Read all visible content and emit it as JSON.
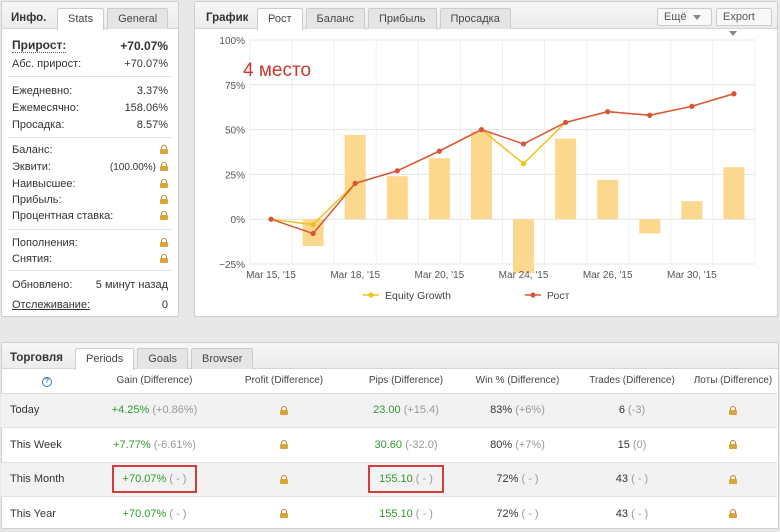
{
  "info": {
    "title": "Инфо.",
    "tabs": [
      "Stats",
      "General"
    ],
    "gain_label": "Прирост:",
    "gain_value": "+70.07%",
    "abs_gain_label": "Абс. прирост:",
    "abs_gain_value": "+70.07%",
    "daily_label": "Ежедневно:",
    "daily_value": "3.37%",
    "monthly_label": "Ежемесячно:",
    "monthly_value": "158.06%",
    "drawdown_label": "Просадка:",
    "drawdown_value": "8.57%",
    "balance_label": "Баланс:",
    "equity_label": "Эквити:",
    "equity_value": "(100.00%)",
    "highest_label": "Наивысшее:",
    "profit_label": "Прибыль:",
    "interest_label": "Процентная ставка:",
    "deposits_label": "Пополнения:",
    "withdrawals_label": "Снятия:",
    "updated_label": "Обновлено:",
    "updated_value": "5 минут назад",
    "tracking_label": "Отслеживание:",
    "tracking_value": "0"
  },
  "graph": {
    "title": "График",
    "tabs": [
      "Рост",
      "Баланс",
      "Прибыль",
      "Просадка"
    ],
    "more_label": "Ещё",
    "export_label": "Export",
    "annotation": "4 место"
  },
  "chart_data": {
    "type": "bar+line",
    "ylim": [
      -25,
      100
    ],
    "yticks": [
      "100%",
      "75%",
      "50%",
      "25%",
      "0%",
      "−25%"
    ],
    "ytick_values": [
      100,
      75,
      50,
      25,
      0,
      -25
    ],
    "xticks": [
      "Mar 15, '15",
      "Mar 18, '15",
      "Mar 20, '15",
      "Mar 24, '15",
      "Mar 26, '15",
      "Mar 30, '15"
    ],
    "xtick_index": [
      0,
      2,
      4,
      6,
      8,
      10
    ],
    "grid": true,
    "legend_position": "bottom",
    "bars": [
      0,
      -15,
      47,
      24,
      34,
      49,
      -30,
      45,
      22,
      -8,
      10,
      29
    ],
    "bar_color": "#fbd88e",
    "series": [
      {
        "name": "Equity Growth",
        "color": "#f2c21a",
        "values": [
          0,
          -3,
          20,
          27,
          38,
          50,
          31,
          54,
          60,
          58,
          63,
          70
        ]
      },
      {
        "name": "Рост",
        "color": "#d9553a",
        "values": [
          0,
          -8,
          20,
          27,
          38,
          50,
          42,
          54,
          60,
          58,
          63,
          70
        ]
      }
    ]
  },
  "trading": {
    "title": "Торговля",
    "tabs": [
      "Periods",
      "Goals",
      "Browser"
    ],
    "help": "?",
    "headers": [
      "Gain (Difference)",
      "Profit (Difference)",
      "Pips (Difference)",
      "Win % (Difference)",
      "Trades (Difference)",
      "Лоты (Difference)"
    ],
    "rows": [
      {
        "period": "Today",
        "gain": "+4.25%",
        "gain_diff": "(+0.86%)",
        "pips": "23.00",
        "pips_diff": "(+15.4)",
        "win": "83%",
        "win_diff": "(+6%)",
        "trades": "6",
        "trades_diff": "(-3)"
      },
      {
        "period": "This Week",
        "gain": "+7.77%",
        "gain_diff": "(-6.61%)",
        "pips": "30.60",
        "pips_diff": "(-32.0)",
        "win": "80%",
        "win_diff": "(+7%)",
        "trades": "15",
        "trades_diff": "(0)"
      },
      {
        "period": "This Month",
        "gain": "+70.07%",
        "gain_diff": "( - )",
        "pips": "155.10",
        "pips_diff": "( - )",
        "win": "72%",
        "win_diff": "( - )",
        "trades": "43",
        "trades_diff": "( - )"
      },
      {
        "period": "This Year",
        "gain": "+70.07%",
        "gain_diff": "( - )",
        "pips": "155.10",
        "pips_diff": "( - )",
        "win": "72%",
        "win_diff": "( - )",
        "trades": "43",
        "trades_diff": "( - )"
      }
    ],
    "highlight_color": "#d23c3c"
  }
}
